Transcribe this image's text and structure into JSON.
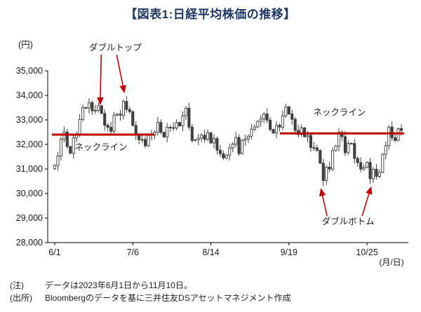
{
  "title": "【図表1:日経平均株価の推移】",
  "notes": [
    {
      "label": "(注)",
      "text": "データは2023年6月1日から11月10日。"
    },
    {
      "label": "(出所)",
      "text": "Bloombergのデータを基に三井住友DSアセットマネジメント作成"
    }
  ],
  "chart_data": {
    "type": "candlestick",
    "title": "日経平均株価の推移",
    "y_axis_unit": "(円)",
    "x_axis_unit": "(月/日)",
    "period": "2023/6/1 - 2023/11/10",
    "ylim": [
      28000,
      35000
    ],
    "ytick_step": 1000,
    "xticks": [
      {
        "index": 0,
        "label": "6/1"
      },
      {
        "index": 25,
        "label": "7/6"
      },
      {
        "index": 50,
        "label": "8/14"
      },
      {
        "index": 75,
        "label": "9/19"
      },
      {
        "index": 100,
        "label": "10/25"
      }
    ],
    "closes": [
      31148,
      31524,
      32217,
      32506,
      31914,
      31641,
      32265,
      32434,
      33018,
      33502,
      33485,
      33706,
      33370,
      33389,
      33575,
      33265,
      32782,
      32698,
      32538,
      33194,
      33234,
      33189,
      33753,
      33422,
      33339,
      32773,
      32388,
      32189,
      32203,
      31943,
      32419,
      32391,
      32493,
      32896,
      32490,
      32304,
      32700,
      32683,
      32668,
      32891,
      32759,
      33172,
      33477,
      32707,
      32159,
      32193,
      32254,
      32377,
      32204,
      32474,
      32059,
      32239,
      31766,
      31626,
      31451,
      31566,
      31857,
      32010,
      32287,
      31624,
      32170,
      32227,
      32333,
      32619,
      32711,
      32939,
      33037,
      33241,
      32991,
      32607,
      32467,
      32776,
      32706,
      33168,
      33533,
      33243,
      33024,
      32571,
      32402,
      32678,
      32315,
      32372,
      31872,
      31858,
      31760,
      31238,
      30527,
      31075,
      30995,
      31746,
      31936,
      32494,
      32316,
      31659,
      32040,
      32042,
      31431,
      31259,
      30999,
      31063,
      31270,
      30602,
      30992,
      30697,
      30859,
      31602,
      31950,
      32708,
      32272,
      32166,
      32646,
      32568
    ],
    "necklines": [
      {
        "label": "ネックライン",
        "from_index": 0,
        "to_index": 31,
        "value": 32400,
        "label_position": "below"
      },
      {
        "label": "ネックライン",
        "from_index": 73,
        "to_index": 111,
        "value": 32450,
        "label_position": "above"
      }
    ],
    "annotations": {
      "double_top": {
        "label": "ダブルトップ",
        "peak_indices": [
          15,
          22
        ]
      },
      "double_bottom": {
        "label": "ダブルボトム",
        "trough_indices": [
          86,
          101
        ]
      }
    },
    "colors": {
      "accent": "#c00000",
      "candle": "#3f3f3f",
      "axis": "#000000",
      "title": "#1f3864"
    }
  }
}
